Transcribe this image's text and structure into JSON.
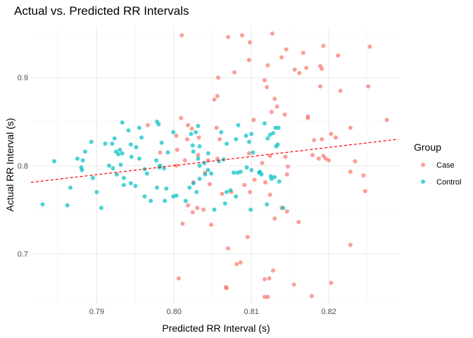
{
  "chart_data": {
    "type": "scatter",
    "title": "Actual vs. Predicted RR Intervals",
    "xlabel": "Predicted RR Interval (s)",
    "ylabel": "Actual RR Interval (s)",
    "xlim": [
      0.7815,
      0.829
    ],
    "ylim": [
      0.6435,
      0.9585
    ],
    "x_ticks": [
      0.79,
      0.8,
      0.81,
      0.82
    ],
    "x_tick_labels": [
      "0.79",
      "0.80",
      "0.81",
      "0.82"
    ],
    "y_ticks": [
      0.7,
      0.8,
      0.9
    ],
    "y_tick_labels": [
      "0.7",
      "0.8",
      "0.9"
    ],
    "grid": true,
    "legend": {
      "title": "Group",
      "position": "right"
    },
    "reference_line": {
      "style": "dashed",
      "color": "#ff0000",
      "x": [
        0.7815,
        0.829
      ],
      "y": [
        0.781,
        0.83
      ]
    },
    "series": [
      {
        "name": "Case",
        "color": "#f8766d",
        "points": [
          [
            0.801,
            0.948
          ],
          [
            0.807,
            0.946
          ],
          [
            0.8088,
            0.948
          ],
          [
            0.8098,
            0.94
          ],
          [
            0.8127,
            0.95
          ],
          [
            0.8145,
            0.932
          ],
          [
            0.8167,
            0.928
          ],
          [
            0.8193,
            0.936
          ],
          [
            0.8212,
            0.925
          ],
          [
            0.8253,
            0.935
          ],
          [
            0.8139,
            0.923
          ],
          [
            0.8121,
            0.914
          ],
          [
            0.8097,
            0.92
          ],
          [
            0.8078,
            0.906
          ],
          [
            0.8057,
            0.9
          ],
          [
            0.8171,
            0.911
          ],
          [
            0.8156,
            0.909
          ],
          [
            0.8162,
            0.905
          ],
          [
            0.8189,
            0.913
          ],
          [
            0.8191,
            0.91
          ],
          [
            0.8117,
            0.897
          ],
          [
            0.812,
            0.889
          ],
          [
            0.8189,
            0.89
          ],
          [
            0.8251,
            0.89
          ],
          [
            0.8215,
            0.885
          ],
          [
            0.813,
            0.876
          ],
          [
            0.8052,
            0.875
          ],
          [
            0.8056,
            0.879
          ],
          [
            0.8133,
            0.867
          ],
          [
            0.8126,
            0.861
          ],
          [
            0.8143,
            0.858
          ],
          [
            0.8173,
            0.856
          ],
          [
            0.8173,
            0.854
          ],
          [
            0.8103,
            0.852
          ],
          [
            0.8275,
            0.852
          ],
          [
            0.8009,
            0.854
          ],
          [
            0.8018,
            0.846
          ],
          [
            0.7966,
            0.846
          ],
          [
            0.8023,
            0.842
          ],
          [
            0.8055,
            0.843
          ],
          [
            0.8228,
            0.843
          ],
          [
            0.8203,
            0.836
          ],
          [
            0.8191,
            0.83
          ],
          [
            0.8209,
            0.832
          ],
          [
            0.8181,
            0.829
          ],
          [
            0.8003,
            0.834
          ],
          [
            0.8017,
            0.83
          ],
          [
            0.8032,
            0.832
          ],
          [
            0.7982,
            0.815
          ],
          [
            0.8004,
            0.818
          ],
          [
            0.8193,
            0.811
          ],
          [
            0.8196,
            0.808
          ],
          [
            0.8187,
            0.808
          ],
          [
            0.8179,
            0.812
          ],
          [
            0.8097,
            0.814
          ],
          [
            0.8124,
            0.811
          ],
          [
            0.8144,
            0.81
          ],
          [
            0.8031,
            0.812
          ],
          [
            0.8056,
            0.808
          ],
          [
            0.8044,
            0.806
          ],
          [
            0.82,
            0.806
          ],
          [
            0.8234,
            0.805
          ],
          [
            0.8114,
            0.803
          ],
          [
            0.8147,
            0.799
          ],
          [
            0.8003,
            0.8
          ],
          [
            0.8014,
            0.806
          ],
          [
            0.8228,
            0.793
          ],
          [
            0.8245,
            0.789
          ],
          [
            0.8146,
            0.79
          ],
          [
            0.804,
            0.792
          ],
          [
            0.8104,
            0.784
          ],
          [
            0.8118,
            0.781
          ],
          [
            0.8025,
            0.781
          ],
          [
            0.8046,
            0.779
          ],
          [
            0.8091,
            0.778
          ],
          [
            0.8074,
            0.77
          ],
          [
            0.8062,
            0.768
          ],
          [
            0.8098,
            0.77
          ],
          [
            0.8124,
            0.767
          ],
          [
            0.8247,
            0.771
          ],
          [
            0.803,
            0.752
          ],
          [
            0.8038,
            0.75
          ],
          [
            0.8024,
            0.747
          ],
          [
            0.8018,
            0.755
          ],
          [
            0.8139,
            0.752
          ],
          [
            0.8146,
            0.748
          ],
          [
            0.813,
            0.74
          ],
          [
            0.8161,
            0.736
          ],
          [
            0.8011,
            0.734
          ],
          [
            0.8048,
            0.733
          ],
          [
            0.8095,
            0.719
          ],
          [
            0.8228,
            0.71
          ],
          [
            0.807,
            0.706
          ],
          [
            0.8086,
            0.69
          ],
          [
            0.8081,
            0.688
          ],
          [
            0.8006,
            0.672
          ],
          [
            0.8117,
            0.671
          ],
          [
            0.8128,
            0.681
          ],
          [
            0.8123,
            0.672
          ],
          [
            0.8155,
            0.665
          ],
          [
            0.8203,
            0.667
          ],
          [
            0.8067,
            0.662
          ],
          [
            0.8068,
            0.661
          ],
          [
            0.8117,
            0.651
          ],
          [
            0.8121,
            0.651
          ],
          [
            0.8178,
            0.652
          ],
          [
            0.8059,
            0.83
          ]
        ]
      },
      {
        "name": "Control",
        "color": "#00bfc4",
        "points": [
          [
            0.7933,
            0.849
          ],
          [
            0.7978,
            0.85
          ],
          [
            0.7955,
            0.843
          ],
          [
            0.798,
            0.847
          ],
          [
            0.8031,
            0.845
          ],
          [
            0.8083,
            0.846
          ],
          [
            0.8117,
            0.848
          ],
          [
            0.8131,
            0.843
          ],
          [
            0.8135,
            0.843
          ],
          [
            0.7941,
            0.84
          ],
          [
            0.7893,
            0.827
          ],
          [
            0.7923,
            0.831
          ],
          [
            0.792,
            0.825
          ],
          [
            0.7911,
            0.825
          ],
          [
            0.7925,
            0.816
          ],
          [
            0.793,
            0.818
          ],
          [
            0.7933,
            0.814
          ],
          [
            0.7928,
            0.813
          ],
          [
            0.7944,
            0.824
          ],
          [
            0.7951,
            0.821
          ],
          [
            0.7945,
            0.81
          ],
          [
            0.7955,
            0.808
          ],
          [
            0.7999,
            0.838
          ],
          [
            0.8028,
            0.838
          ],
          [
            0.8022,
            0.836
          ],
          [
            0.8024,
            0.823
          ],
          [
            0.8033,
            0.822
          ],
          [
            0.8025,
            0.816
          ],
          [
            0.8044,
            0.814
          ],
          [
            0.8061,
            0.838
          ],
          [
            0.8068,
            0.825
          ],
          [
            0.808,
            0.83
          ],
          [
            0.8093,
            0.834
          ],
          [
            0.81,
            0.836
          ],
          [
            0.8097,
            0.827
          ],
          [
            0.8124,
            0.835
          ],
          [
            0.8121,
            0.831
          ],
          [
            0.8128,
            0.837
          ],
          [
            0.8102,
            0.815
          ],
          [
            0.8132,
            0.822
          ],
          [
            0.8134,
            0.824
          ],
          [
            0.7885,
            0.816
          ],
          [
            0.7882,
            0.806
          ],
          [
            0.7875,
            0.808
          ],
          [
            0.7845,
            0.805
          ],
          [
            0.788,
            0.798
          ],
          [
            0.7881,
            0.795
          ],
          [
            0.7895,
            0.786
          ],
          [
            0.7866,
            0.775
          ],
          [
            0.79,
            0.77
          ],
          [
            0.783,
            0.756
          ],
          [
            0.7862,
            0.755
          ],
          [
            0.7906,
            0.752
          ],
          [
            0.7916,
            0.8
          ],
          [
            0.7921,
            0.797
          ],
          [
            0.7931,
            0.801
          ],
          [
            0.7926,
            0.79
          ],
          [
            0.7935,
            0.786
          ],
          [
            0.7944,
            0.78
          ],
          [
            0.795,
            0.777
          ],
          [
            0.7935,
            0.778
          ],
          [
            0.7962,
            0.796
          ],
          [
            0.7965,
            0.791
          ],
          [
            0.7977,
            0.806
          ],
          [
            0.7982,
            0.8
          ],
          [
            0.7981,
            0.798
          ],
          [
            0.7987,
            0.797
          ],
          [
            0.7978,
            0.775
          ],
          [
            0.799,
            0.774
          ],
          [
            0.7962,
            0.765
          ],
          [
            0.797,
            0.76
          ],
          [
            0.7988,
            0.76
          ],
          [
            0.7999,
            0.765
          ],
          [
            0.8003,
            0.766
          ],
          [
            0.802,
            0.775
          ],
          [
            0.8025,
            0.78
          ],
          [
            0.8031,
            0.808
          ],
          [
            0.8033,
            0.8
          ],
          [
            0.8039,
            0.803
          ],
          [
            0.8044,
            0.795
          ],
          [
            0.804,
            0.79
          ],
          [
            0.8033,
            0.785
          ],
          [
            0.8048,
            0.791
          ],
          [
            0.8058,
            0.805
          ],
          [
            0.8064,
            0.807
          ],
          [
            0.8077,
            0.792
          ],
          [
            0.8082,
            0.792
          ],
          [
            0.8086,
            0.793
          ],
          [
            0.8094,
            0.798
          ],
          [
            0.81,
            0.795
          ],
          [
            0.8111,
            0.793
          ],
          [
            0.811,
            0.792
          ],
          [
            0.8113,
            0.79
          ],
          [
            0.8125,
            0.788
          ],
          [
            0.8136,
            0.782
          ],
          [
            0.8068,
            0.77
          ],
          [
            0.8073,
            0.772
          ],
          [
            0.808,
            0.765
          ],
          [
            0.8066,
            0.757
          ],
          [
            0.8099,
            0.75
          ],
          [
            0.812,
            0.756
          ],
          [
            0.8126,
            0.785
          ],
          [
            0.813,
            0.787
          ],
          [
            0.8015,
            0.76
          ],
          [
            0.8052,
            0.75
          ],
          [
            0.8029,
            0.77
          ],
          [
            0.8141,
            0.752
          ],
          [
            0.7958,
            0.832
          ],
          [
            0.7984,
            0.826
          ],
          [
            0.7992,
            0.815
          ]
        ]
      }
    ]
  }
}
